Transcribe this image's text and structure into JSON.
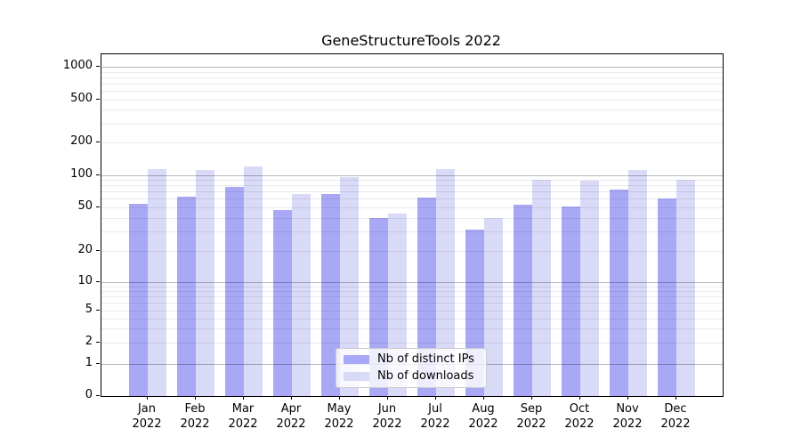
{
  "chart_data": {
    "type": "bar",
    "title": "GeneStructureTools 2022",
    "categories": [
      "Jan",
      "Feb",
      "Mar",
      "Apr",
      "May",
      "Jun",
      "Jul",
      "Aug",
      "Sep",
      "Oct",
      "Nov",
      "Dec"
    ],
    "xtick_year": "2022",
    "yscale": "symlog",
    "y_tick_labels": [
      0,
      1,
      2,
      5,
      10,
      20,
      50,
      100,
      200,
      500,
      1000
    ],
    "ylim": [
      0,
      1400
    ],
    "grid": "on",
    "legend_position": "lower center",
    "series": [
      {
        "name": "Nb of distinct IPs",
        "color": "#a8a8f6",
        "values": [
          54,
          63,
          78,
          47,
          67,
          40,
          61,
          31,
          53,
          51,
          74,
          60
        ]
      },
      {
        "name": "Nb of downloads",
        "color": "#d9d9f8",
        "values": [
          114,
          111,
          121,
          66,
          96,
          44,
          114,
          40,
          90,
          89,
          111,
          91
        ]
      }
    ]
  }
}
